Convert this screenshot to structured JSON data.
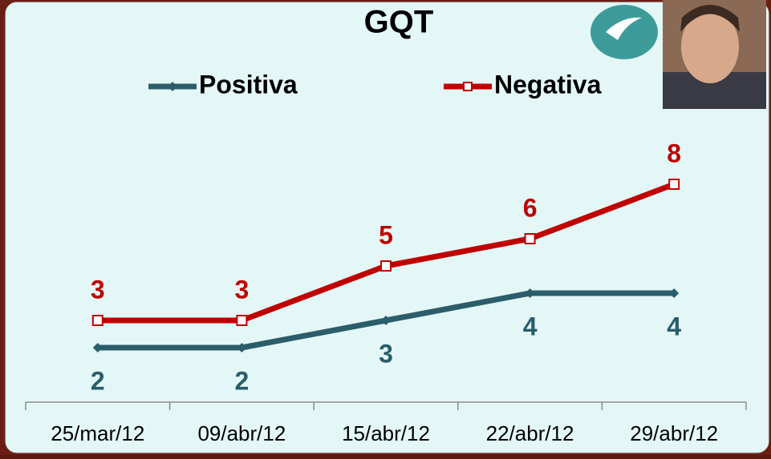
{
  "chart_data": {
    "type": "line",
    "title": "GQT",
    "categories": [
      "25/mar/12",
      "09/abr/12",
      "15/abr/12",
      "22/abr/12",
      "29/abr/12"
    ],
    "series": [
      {
        "name": "Positiva",
        "color": "#2b5d6b",
        "values": [
          2,
          2,
          3,
          4,
          4
        ]
      },
      {
        "name": "Negativa",
        "color": "#c00000",
        "values": [
          3,
          3,
          5,
          6,
          8
        ]
      }
    ],
    "ylim": [
      0,
      10
    ]
  }
}
